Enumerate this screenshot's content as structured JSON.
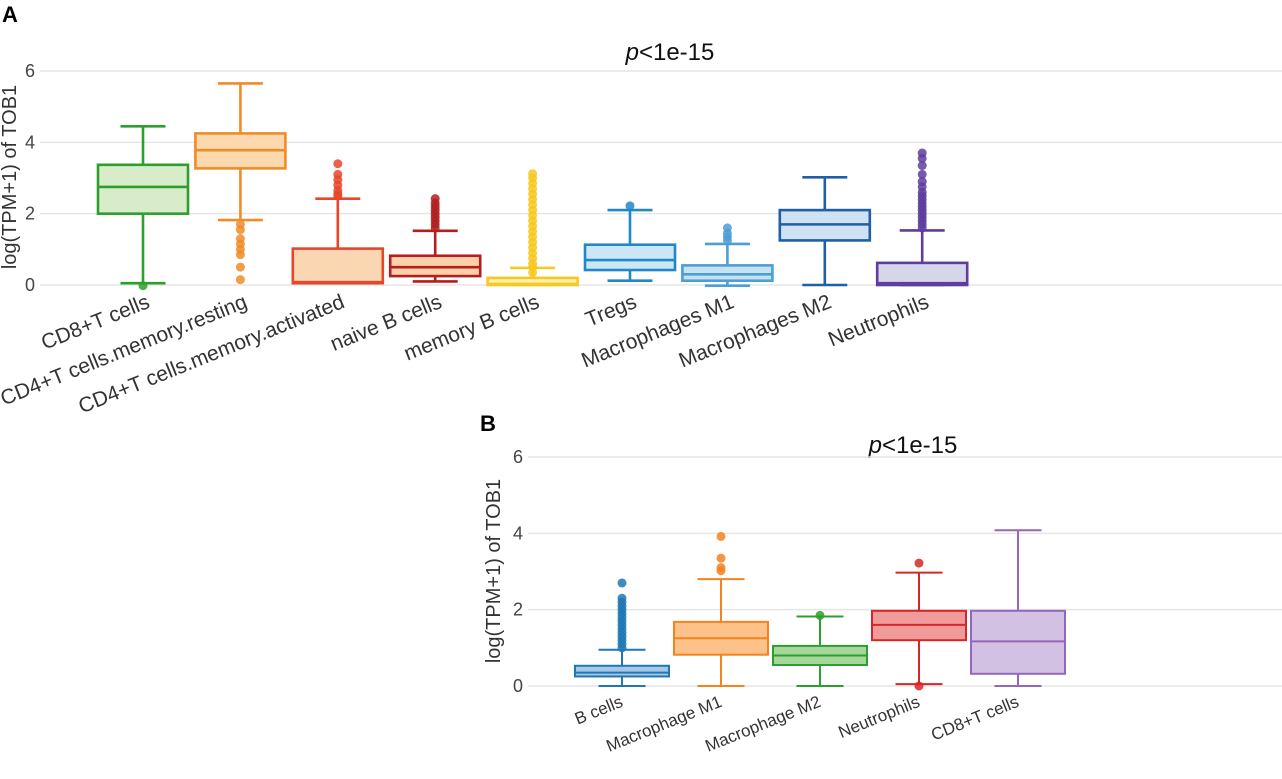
{
  "chart_data": [
    {
      "panel": "A",
      "type": "box",
      "title_p": "p",
      "title_rest": "<1e-15",
      "ylabel": "log(TPM+1) of TOB1",
      "xlabel": "",
      "ylim": [
        0,
        6
      ],
      "yticks": [
        0,
        2,
        4,
        6
      ],
      "grid": true,
      "series": [
        {
          "name": "CD8+T cells",
          "color": "#2ca02c",
          "fill": "#d9ecc9",
          "min": 0.05,
          "q1": 2.0,
          "median": 2.75,
          "q3": 3.37,
          "max": 4.45,
          "outliers": [
            -0.02
          ]
        },
        {
          "name": "CD4+T cells.memory.resting",
          "color": "#f08c28",
          "fill": "#fcd8ae",
          "min": 1.82,
          "q1": 3.27,
          "median": 3.78,
          "q3": 4.25,
          "max": 5.65,
          "outliers": [
            0.15,
            0.5,
            0.85,
            1.0,
            1.15,
            1.3,
            1.55,
            1.7
          ]
        },
        {
          "name": "CD4+T cells.memory.activated",
          "color": "#e8452a",
          "fill": "#fbd6b3",
          "min": 0.05,
          "q1": 0.05,
          "median": 0.08,
          "q3": 1.02,
          "max": 2.42,
          "outliers": [
            2.5,
            2.55,
            2.65,
            2.8,
            2.95,
            3.1,
            3.4
          ]
        },
        {
          "name": "naive B cells",
          "color": "#b31e1e",
          "fill": "#fcd0a8",
          "min": 0.1,
          "q1": 0.25,
          "median": 0.5,
          "q3": 0.82,
          "max": 1.52,
          "outliers": [
            1.6,
            1.7,
            1.8,
            1.9,
            2.0,
            2.1,
            2.2,
            2.3,
            2.42
          ]
        },
        {
          "name": "memory B cells",
          "color": "#f7c81e",
          "fill": "#fdf0b4",
          "min": 0.0,
          "q1": 0.0,
          "median": 0.03,
          "q3": 0.2,
          "max": 0.48,
          "outliers": [
            0.35,
            0.5,
            0.6,
            0.75,
            0.9,
            1.05,
            1.2,
            1.35,
            1.5,
            1.65,
            1.8,
            1.95,
            2.1,
            2.25,
            2.4,
            2.55,
            2.7,
            2.85,
            3.0,
            3.12
          ]
        },
        {
          "name": "Tregs",
          "color": "#1f88c9",
          "fill": "#cde6f5",
          "min": 0.12,
          "q1": 0.42,
          "median": 0.7,
          "q3": 1.13,
          "max": 2.1,
          "outliers": [
            2.22
          ]
        },
        {
          "name": "Macrophages M1",
          "color": "#4a9fd4",
          "fill": "#c7e0f2",
          "min": -0.02,
          "q1": 0.12,
          "median": 0.3,
          "q3": 0.55,
          "max": 1.15,
          "outliers": [
            1.25,
            1.35,
            1.45,
            1.6
          ]
        },
        {
          "name": "Macrophages M2",
          "color": "#1f5fa6",
          "fill": "#cfe2f3",
          "min": 0.0,
          "q1": 1.25,
          "median": 1.7,
          "q3": 2.1,
          "max": 3.02,
          "outliers": []
        },
        {
          "name": "Neutrophils",
          "color": "#5e3d9e",
          "fill": "#d6d6ea",
          "min": 0.0,
          "q1": 0.0,
          "median": 0.05,
          "q3": 0.62,
          "max": 1.53,
          "outliers": [
            1.6,
            1.7,
            1.8,
            1.9,
            2.0,
            2.1,
            2.2,
            2.3,
            2.4,
            2.5,
            2.6,
            2.75,
            2.9,
            3.1,
            3.35,
            3.55,
            3.7
          ]
        }
      ]
    },
    {
      "panel": "B",
      "type": "box",
      "title_p": "p",
      "title_rest": "<1e-15",
      "ylabel": "log(TPM+1) of TOB1",
      "xlabel": "",
      "ylim": [
        0,
        6
      ],
      "yticks": [
        0,
        2,
        4,
        6
      ],
      "grid": true,
      "series": [
        {
          "name": "B cells",
          "color": "#1f77b4",
          "fill": "#a6c8e4",
          "min": 0.0,
          "q1": 0.25,
          "median": 0.35,
          "q3": 0.53,
          "max": 0.95,
          "outliers": [
            1.0,
            1.1,
            1.2,
            1.3,
            1.4,
            1.5,
            1.6,
            1.7,
            1.8,
            1.9,
            2.0,
            2.1,
            2.2,
            2.3,
            2.7
          ]
        },
        {
          "name": "Macrophage M1",
          "color": "#f5821f",
          "fill": "#fcc28a",
          "min": 0.0,
          "q1": 0.82,
          "median": 1.25,
          "q3": 1.68,
          "max": 2.8,
          "outliers": [
            3.02,
            3.1,
            3.35,
            3.92
          ]
        },
        {
          "name": "Macrophage M2",
          "color": "#2ca02c",
          "fill": "#a6d69c",
          "min": 0.0,
          "q1": 0.55,
          "median": 0.8,
          "q3": 1.05,
          "max": 1.82,
          "outliers": [
            1.85
          ]
        },
        {
          "name": "Neutrophils",
          "color": "#d62728",
          "fill": "#f09a9a",
          "min": 0.05,
          "q1": 1.2,
          "median": 1.6,
          "q3": 1.97,
          "max": 2.97,
          "outliers": [
            3.22,
            0.0
          ]
        },
        {
          "name": "CD8+T cells",
          "color": "#9467bd",
          "fill": "#d2c1e2",
          "min": 0.0,
          "q1": 0.32,
          "median": 1.17,
          "q3": 1.97,
          "max": 4.08,
          "outliers": []
        }
      ]
    }
  ],
  "panels": {
    "a_label": "A",
    "b_label": "B"
  }
}
